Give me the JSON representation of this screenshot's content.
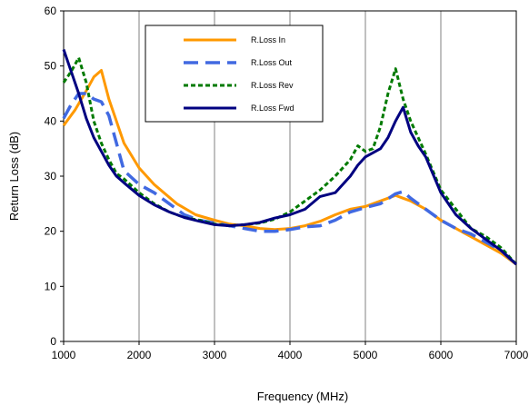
{
  "chart_data": {
    "type": "line",
    "title": "",
    "xlabel": "Frequency (MHz)",
    "ylabel": "Return Loss (dB)",
    "xlim": [
      1000,
      7000
    ],
    "ylim": [
      0,
      60
    ],
    "x_ticks": [
      1000,
      2000,
      3000,
      4000,
      5000,
      6000,
      7000
    ],
    "y_ticks": [
      0,
      10,
      20,
      30,
      40,
      50,
      60
    ],
    "grid": "vertical",
    "legend_position": "top-left",
    "series": [
      {
        "name": "R.Loss In",
        "color": "#FF9900",
        "dash": "solid",
        "points": [
          [
            1000,
            39.2
          ],
          [
            1150,
            42
          ],
          [
            1300,
            45.5
          ],
          [
            1400,
            48
          ],
          [
            1500,
            49.2
          ],
          [
            1600,
            44
          ],
          [
            1700,
            40
          ],
          [
            1800,
            36
          ],
          [
            2000,
            31.5
          ],
          [
            2200,
            28.5
          ],
          [
            2500,
            25
          ],
          [
            2750,
            23
          ],
          [
            3000,
            22
          ],
          [
            3200,
            21.3
          ],
          [
            3400,
            21
          ],
          [
            3600,
            20.5
          ],
          [
            3800,
            20.3
          ],
          [
            4000,
            20.5
          ],
          [
            4200,
            21
          ],
          [
            4400,
            21.8
          ],
          [
            4600,
            23
          ],
          [
            4800,
            24
          ],
          [
            5000,
            24.5
          ],
          [
            5200,
            25.5
          ],
          [
            5400,
            26.5
          ],
          [
            5500,
            26
          ],
          [
            5600,
            25.5
          ],
          [
            5800,
            24
          ],
          [
            6000,
            22
          ],
          [
            6200,
            20.5
          ],
          [
            6400,
            19
          ],
          [
            6600,
            17.5
          ],
          [
            6800,
            16
          ],
          [
            7000,
            14
          ]
        ]
      },
      {
        "name": "R.Loss Out",
        "color": "#4169E1",
        "dash": "long-dash",
        "points": [
          [
            1000,
            40.5
          ],
          [
            1100,
            43
          ],
          [
            1200,
            45
          ],
          [
            1300,
            45
          ],
          [
            1400,
            44
          ],
          [
            1500,
            43.5
          ],
          [
            1600,
            41
          ],
          [
            1700,
            36
          ],
          [
            1800,
            31
          ],
          [
            2000,
            28.5
          ],
          [
            2200,
            27
          ],
          [
            2400,
            25
          ],
          [
            2600,
            23
          ],
          [
            2800,
            22
          ],
          [
            3000,
            21.5
          ],
          [
            3200,
            21
          ],
          [
            3400,
            20.5
          ],
          [
            3600,
            20
          ],
          [
            3800,
            20
          ],
          [
            4000,
            20.3
          ],
          [
            4200,
            20.8
          ],
          [
            4400,
            21
          ],
          [
            4600,
            22
          ],
          [
            4800,
            23.5
          ],
          [
            5000,
            24.3
          ],
          [
            5200,
            25
          ],
          [
            5400,
            26.8
          ],
          [
            5500,
            27.2
          ],
          [
            5600,
            26
          ],
          [
            5800,
            24
          ],
          [
            6000,
            22
          ],
          [
            6200,
            20.5
          ],
          [
            6400,
            19.5
          ],
          [
            6600,
            18
          ],
          [
            6800,
            16.5
          ],
          [
            7000,
            14
          ]
        ]
      },
      {
        "name": "R.Loss Rev",
        "color": "#007A00",
        "dash": "short-dash",
        "points": [
          [
            1000,
            47
          ],
          [
            1100,
            49
          ],
          [
            1200,
            51.5
          ],
          [
            1300,
            47
          ],
          [
            1400,
            40
          ],
          [
            1500,
            36
          ],
          [
            1600,
            33
          ],
          [
            1700,
            30.5
          ],
          [
            1800,
            29.5
          ],
          [
            2000,
            27
          ],
          [
            2200,
            25
          ],
          [
            2400,
            23.5
          ],
          [
            2600,
            22.5
          ],
          [
            2800,
            22
          ],
          [
            3000,
            21.3
          ],
          [
            3200,
            21
          ],
          [
            3400,
            21.2
          ],
          [
            3600,
            21.5
          ],
          [
            3800,
            22.2
          ],
          [
            4000,
            23.5
          ],
          [
            4200,
            25.5
          ],
          [
            4400,
            27.5
          ],
          [
            4600,
            30
          ],
          [
            4800,
            33
          ],
          [
            4900,
            35.5
          ],
          [
            5000,
            34.5
          ],
          [
            5100,
            35
          ],
          [
            5200,
            39
          ],
          [
            5300,
            45
          ],
          [
            5400,
            49.5
          ],
          [
            5500,
            44
          ],
          [
            5600,
            40
          ],
          [
            5700,
            37
          ],
          [
            5800,
            34
          ],
          [
            6000,
            27.5
          ],
          [
            6200,
            24
          ],
          [
            6400,
            20.5
          ],
          [
            6600,
            19
          ],
          [
            6800,
            17
          ],
          [
            7000,
            14
          ]
        ]
      },
      {
        "name": "R.Loss Fwd",
        "color": "#000080",
        "dash": "solid",
        "points": [
          [
            1000,
            53
          ],
          [
            1100,
            49
          ],
          [
            1200,
            45
          ],
          [
            1300,
            40.5
          ],
          [
            1400,
            37
          ],
          [
            1500,
            34.5
          ],
          [
            1600,
            32
          ],
          [
            1700,
            30
          ],
          [
            1800,
            28.8
          ],
          [
            2000,
            26.5
          ],
          [
            2200,
            24.8
          ],
          [
            2400,
            23.5
          ],
          [
            2600,
            22.5
          ],
          [
            2800,
            21.8
          ],
          [
            3000,
            21.2
          ],
          [
            3200,
            21
          ],
          [
            3400,
            21.2
          ],
          [
            3600,
            21.6
          ],
          [
            3800,
            22.4
          ],
          [
            4000,
            23
          ],
          [
            4200,
            24
          ],
          [
            4400,
            26.3
          ],
          [
            4600,
            27
          ],
          [
            4700,
            28.5
          ],
          [
            4800,
            30
          ],
          [
            4900,
            32
          ],
          [
            5000,
            33.5
          ],
          [
            5200,
            35
          ],
          [
            5300,
            37
          ],
          [
            5400,
            40
          ],
          [
            5500,
            42.5
          ],
          [
            5600,
            38
          ],
          [
            5700,
            35.5
          ],
          [
            5800,
            33.5
          ],
          [
            6000,
            27
          ],
          [
            6200,
            23
          ],
          [
            6400,
            20.5
          ],
          [
            6600,
            18.5
          ],
          [
            6800,
            16.5
          ],
          [
            7000,
            14
          ]
        ]
      }
    ]
  }
}
